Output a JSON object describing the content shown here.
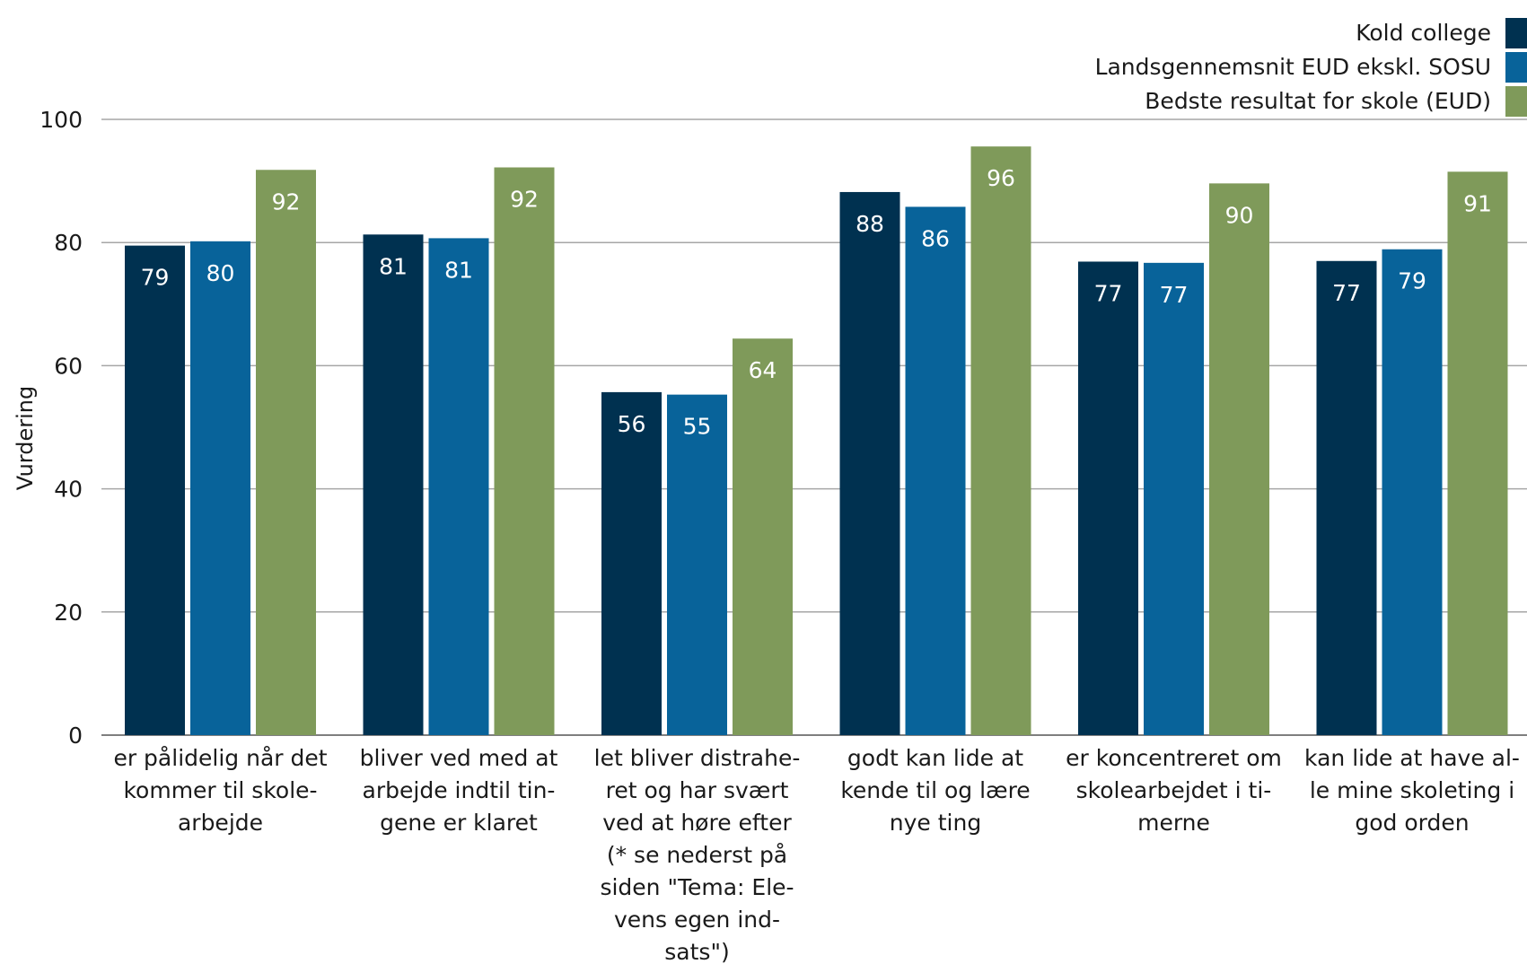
{
  "chart_data": {
    "type": "bar",
    "title": "",
    "xlabel": "",
    "ylabel": "Vurdering",
    "ylim": [
      0,
      100
    ],
    "yticks": [
      0,
      20,
      40,
      60,
      80,
      100
    ],
    "grid": true,
    "legend_position": "top-right",
    "categories": [
      [
        "er pålidelig når det",
        "kommer til skole-",
        "arbejde"
      ],
      [
        "bliver ved med at",
        "arbejde indtil tin-",
        "gene er klaret"
      ],
      [
        "let bliver distrahe-",
        "ret og har svært",
        "ved at høre efter",
        "(* se nederst på",
        "siden \"Tema: Ele-",
        "vens egen ind-",
        "sats\")"
      ],
      [
        "godt kan lide at",
        "kende til og lære",
        "nye ting"
      ],
      [
        "er koncentreret om",
        "skolearbejdet i ti-",
        "merne"
      ],
      [
        "kan lide at have al-",
        "le mine skoleting i",
        "god orden"
      ]
    ],
    "series": [
      {
        "name": "Kold college",
        "color": "#003150",
        "values": [
          79.5,
          81.3,
          55.7,
          88.2,
          76.9,
          77.0
        ],
        "labels": [
          "79",
          "81",
          "56",
          "88",
          "77",
          "77"
        ]
      },
      {
        "name": "Landsgennemsnit EUD ekskl. SOSU",
        "color": "#08639a",
        "values": [
          80.2,
          80.7,
          55.3,
          85.8,
          76.7,
          78.9
        ],
        "labels": [
          "80",
          "81",
          "55",
          "86",
          "77",
          "79"
        ]
      },
      {
        "name": "Bedste resultat for skole (EUD)",
        "color": "#7f9a5a",
        "values": [
          91.8,
          92.2,
          64.4,
          95.6,
          89.6,
          91.5
        ],
        "labels": [
          "92",
          "92",
          "64",
          "96",
          "90",
          "91"
        ]
      }
    ]
  }
}
